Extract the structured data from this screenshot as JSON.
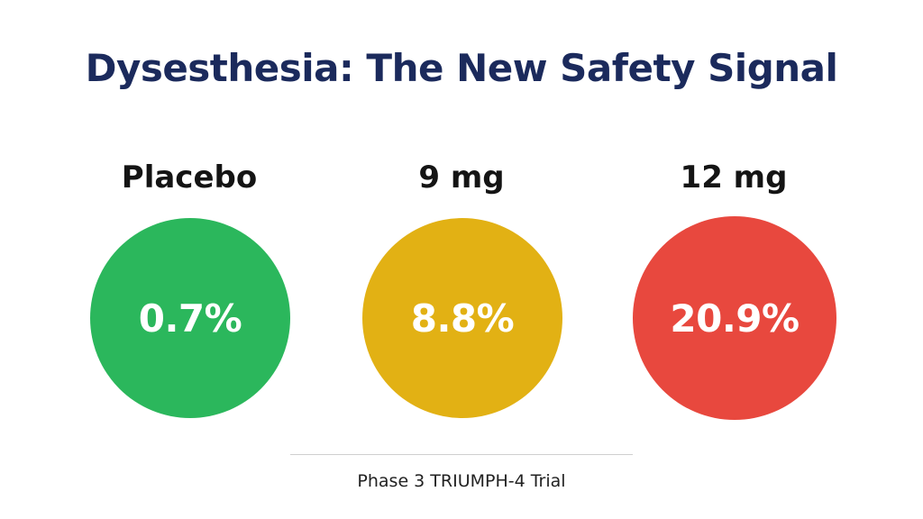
{
  "slide": {
    "title": "Dysesthesia: The New Safety Signal",
    "groups": [
      {
        "label": "Placebo",
        "value": "0.7%",
        "color": "#2bb75c"
      },
      {
        "label": "9 mg",
        "value": "8.8%",
        "color": "#e2b114"
      },
      {
        "label": "12 mg",
        "value": "20.9%",
        "color": "#e8483e"
      }
    ],
    "footnote": "Phase 3 TRIUMPH-4 Trial"
  }
}
